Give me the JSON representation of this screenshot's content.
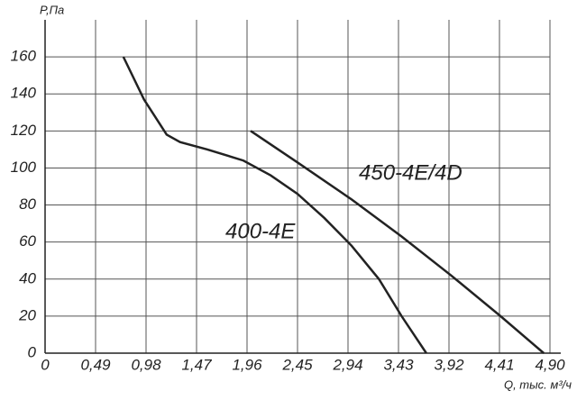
{
  "chart_data": {
    "type": "line",
    "xlabel": "Q, тыс. м³/ч",
    "ylabel": "P,Па",
    "xlim": [
      0,
      4.9
    ],
    "ylim": [
      0,
      180
    ],
    "xticks": [
      0,
      {
        "value": 0.49,
        "label": "0,49"
      },
      {
        "value": 0.98,
        "label": "0,98"
      },
      {
        "value": 1.47,
        "label": "1,47"
      },
      {
        "value": 1.96,
        "label": "1,96"
      },
      {
        "value": 2.45,
        "label": "2,45"
      },
      {
        "value": 2.94,
        "label": "2,94"
      },
      {
        "value": 3.43,
        "label": "3,43"
      },
      {
        "value": 3.92,
        "label": "3,92"
      },
      {
        "value": 4.41,
        "label": "4,41"
      },
      {
        "value": 4.9,
        "label": "4,90"
      }
    ],
    "yticks": [
      0,
      20,
      40,
      60,
      80,
      100,
      120,
      140,
      160
    ],
    "grid": true,
    "series": [
      {
        "name": "400-4E",
        "color": "#222222",
        "x": [
          0.76,
          0.96,
          1.18,
          1.31,
          1.575,
          1.925,
          2.19,
          2.45,
          2.71,
          2.975,
          3.24,
          3.46,
          3.7
        ],
        "values": [
          160,
          137,
          118,
          114,
          110,
          104,
          96,
          86,
          73,
          58,
          40,
          20,
          0
        ]
      },
      {
        "name": "450-4E/4D",
        "color": "#222222",
        "x": [
          1.995,
          2.45,
          2.975,
          3.46,
          3.94,
          4.42,
          4.84
        ],
        "values": [
          120,
          103,
          83,
          63,
          42,
          20,
          0
        ]
      }
    ]
  }
}
